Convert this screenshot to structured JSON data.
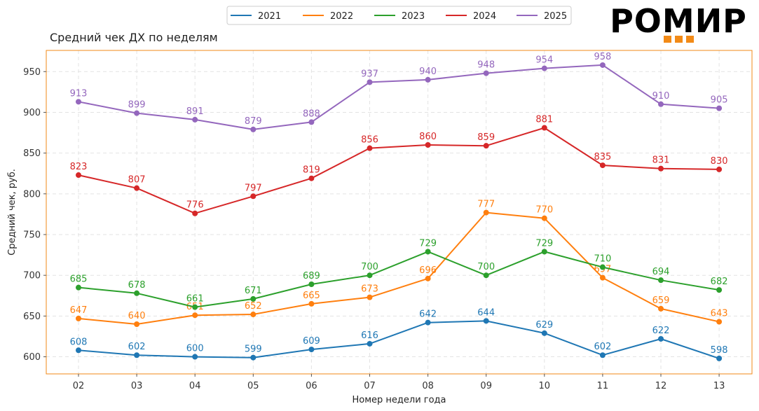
{
  "logo": {
    "text": "РОМИР",
    "accent": "#f28a17"
  },
  "chart_data": {
    "type": "line",
    "title": "Средний чек ДХ по неделям",
    "xlabel": "Номер недели года",
    "ylabel": "Средний чек, руб.",
    "categories": [
      "02",
      "03",
      "04",
      "05",
      "06",
      "07",
      "08",
      "09",
      "10",
      "11",
      "12",
      "13"
    ],
    "yticks": [
      600,
      650,
      700,
      750,
      800,
      850,
      900,
      950
    ],
    "ylim": [
      579,
      976
    ],
    "grid": true,
    "legend_position": "top-center",
    "frame_color": "#f28a17",
    "series": [
      {
        "name": "2021",
        "color": "#1f77b4",
        "values": [
          608,
          602,
          600,
          599,
          609,
          616,
          642,
          644,
          629,
          602,
          622,
          598
        ]
      },
      {
        "name": "2022",
        "color": "#ff7f0e",
        "values": [
          647,
          640,
          651,
          652,
          665,
          673,
          696,
          777,
          770,
          697,
          659,
          643
        ]
      },
      {
        "name": "2023",
        "color": "#2ca02c",
        "values": [
          685,
          678,
          661,
          671,
          689,
          700,
          729,
          700,
          729,
          710,
          694,
          682
        ]
      },
      {
        "name": "2024",
        "color": "#d62728",
        "values": [
          823,
          807,
          776,
          797,
          819,
          856,
          860,
          859,
          881,
          835,
          831,
          830
        ]
      },
      {
        "name": "2025",
        "color": "#9467bd",
        "values": [
          913,
          899,
          891,
          879,
          888,
          937,
          940,
          948,
          954,
          958,
          910,
          905
        ]
      }
    ]
  }
}
